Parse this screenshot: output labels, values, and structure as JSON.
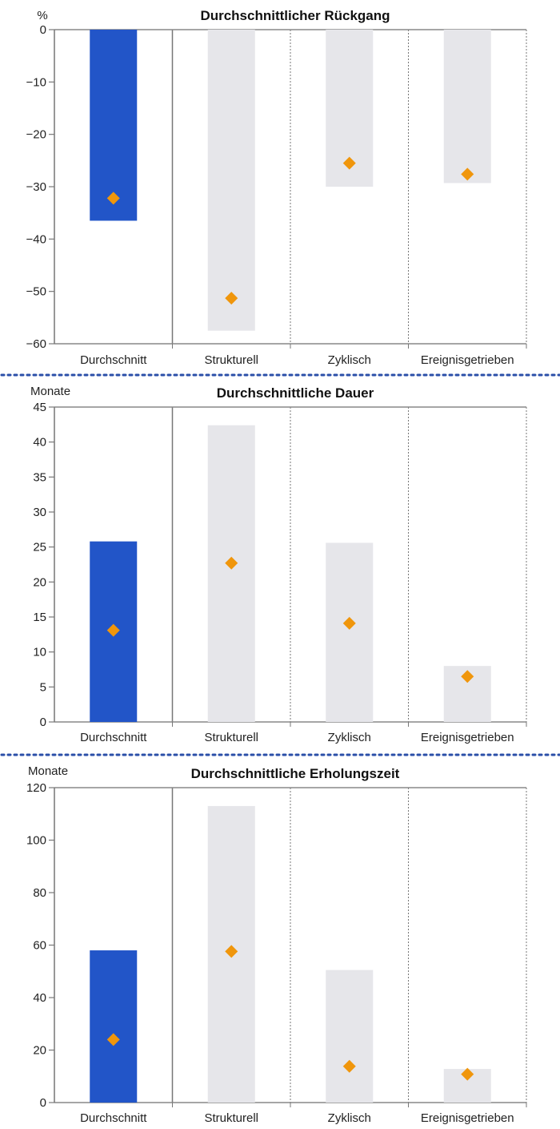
{
  "colors": {
    "average_bar": "#2255c8",
    "category_bar": "#e6e6ea",
    "marker": "#f0960c",
    "axis": "#888888",
    "separator": "#2b4fa8"
  },
  "chart_data": [
    {
      "type": "bar",
      "title": "Durchschnittlicher Rückgang",
      "unit": "%",
      "categories": [
        "Durchschnitt",
        "Strukturell",
        "Zyklisch",
        "Ereignisgetrieben"
      ],
      "series": [
        {
          "name": "Balken",
          "values": [
            -36.5,
            -57.5,
            -30,
            -29.3
          ]
        },
        {
          "name": "Raute",
          "values": [
            -32.2,
            -51.3,
            -25.5,
            -27.6
          ]
        }
      ],
      "ylim": [
        -60,
        0
      ],
      "yticks": [
        0,
        -10,
        -20,
        -30,
        -40,
        -50,
        -60
      ],
      "ytick_labels": [
        "0",
        "−10",
        "−20",
        "−30",
        "−40",
        "−50",
        "−60"
      ]
    },
    {
      "type": "bar",
      "title": "Durchschnittliche Dauer",
      "unit": "Monate",
      "categories": [
        "Durchschnitt",
        "Strukturell",
        "Zyklisch",
        "Ereignisgetrieben"
      ],
      "series": [
        {
          "name": "Balken",
          "values": [
            25.8,
            42.4,
            25.6,
            8
          ]
        },
        {
          "name": "Raute",
          "values": [
            13.1,
            22.7,
            14.1,
            6.5
          ]
        }
      ],
      "ylim": [
        0,
        45
      ],
      "yticks": [
        0,
        5,
        10,
        15,
        20,
        25,
        30,
        35,
        40,
        45
      ],
      "ytick_labels": [
        "0",
        "5",
        "10",
        "15",
        "20",
        "25",
        "30",
        "35",
        "40",
        "45"
      ]
    },
    {
      "type": "bar",
      "title": "Durchschnittliche Erholungszeit",
      "unit": "Monate",
      "categories": [
        "Durchschnitt",
        "Strukturell",
        "Zyklisch",
        "Ereignisgetrieben"
      ],
      "series": [
        {
          "name": "Balken",
          "values": [
            58,
            113,
            50.5,
            12.8
          ]
        },
        {
          "name": "Raute",
          "values": [
            24,
            57.6,
            13.8,
            10.8
          ]
        }
      ],
      "ylim": [
        0,
        120
      ],
      "yticks": [
        0,
        20,
        40,
        60,
        80,
        100,
        120
      ],
      "ytick_labels": [
        "0",
        "20",
        "40",
        "60",
        "80",
        "100",
        "120"
      ]
    }
  ]
}
